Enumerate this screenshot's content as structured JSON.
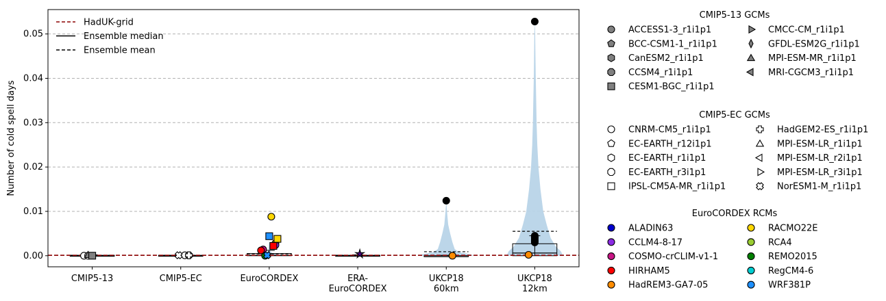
{
  "chart_data": {
    "type": "violin",
    "title": "",
    "ylabel": "Number of cold spell days",
    "xlabel": "",
    "ylim": [
      -0.0025,
      0.0555
    ],
    "yticks": [
      0.0,
      0.01,
      0.02,
      0.03,
      0.04,
      0.05
    ],
    "ytick_labels": [
      "0.00",
      "0.01",
      "0.02",
      "0.03",
      "0.04",
      "0.05"
    ],
    "grid": "horizontal dashed",
    "categories": [
      {
        "label_lines": [
          "CMIP5-13"
        ]
      },
      {
        "label_lines": [
          "CMIP5-EC"
        ]
      },
      {
        "label_lines": [
          "EuroCORDEX"
        ]
      },
      {
        "label_lines": [
          "ERA-",
          "EuroCORDEX"
        ]
      },
      {
        "label_lines": [
          "UKCP18",
          "60km"
        ]
      },
      {
        "label_lines": [
          "UKCP18",
          "12km"
        ]
      }
    ],
    "reference_line": {
      "name": "HadUK-grid",
      "value": 0.0001,
      "color": "#8b0000"
    },
    "box_stats": [
      {
        "q1": 0.0,
        "median": 0.0,
        "q3": 0.0001,
        "mean": 0.0001,
        "whisker_low": 0.0,
        "whisker_high": 0.0002
      },
      {
        "q1": 0.0,
        "median": 0.0,
        "q3": 0.0001,
        "mean": 0.0001,
        "whisker_low": 0.0,
        "whisker_high": 0.0002
      },
      {
        "q1": 0.0,
        "median": 0.0001,
        "q3": 0.0005,
        "mean": 0.0004,
        "whisker_low": 0.0,
        "whisker_high": 0.0012
      },
      {
        "q1": 0.0,
        "median": 0.0,
        "q3": 0.0001,
        "mean": 0.0001,
        "whisker_low": 0.0,
        "whisker_high": 0.0002
      },
      {
        "q1": 0.0,
        "median": 0.0,
        "q3": 0.0,
        "mean": 0.0009,
        "whisker_low": 0.0,
        "whisker_high": 0.0001
      },
      {
        "q1": 0.0,
        "median": 0.0006,
        "q3": 0.0027,
        "mean": 0.0055,
        "whisker_low": 0.0,
        "whisker_high": 0.0045
      }
    ],
    "violins": [
      {
        "category": 4,
        "profile": [
          [
            0.0,
            1.0
          ],
          [
            0.0004,
            0.8
          ],
          [
            0.0008,
            0.45
          ],
          [
            0.0015,
            0.3
          ],
          [
            0.003,
            0.22
          ],
          [
            0.005,
            0.14
          ],
          [
            0.007,
            0.07
          ],
          [
            0.009,
            0.04
          ],
          [
            0.0105,
            0.02
          ],
          [
            0.0125,
            0.0
          ]
        ]
      },
      {
        "category": 5,
        "profile": [
          [
            0.0,
            1.0
          ],
          [
            0.001,
            0.92
          ],
          [
            0.002,
            0.75
          ],
          [
            0.004,
            0.56
          ],
          [
            0.007,
            0.42
          ],
          [
            0.01,
            0.3
          ],
          [
            0.015,
            0.2
          ],
          [
            0.02,
            0.13
          ],
          [
            0.025,
            0.09
          ],
          [
            0.03,
            0.065
          ],
          [
            0.035,
            0.05
          ],
          [
            0.04,
            0.035
          ],
          [
            0.045,
            0.025
          ],
          [
            0.05,
            0.015
          ],
          [
            0.0528,
            0.0
          ]
        ]
      },
      {
        "category": 2,
        "profile": [
          [
            0.0,
            0.45
          ],
          [
            0.0005,
            0.12
          ],
          [
            0.001,
            0.04
          ],
          [
            0.002,
            0.02
          ],
          [
            0.0035,
            0.0
          ]
        ]
      }
    ],
    "outliers": [
      {
        "category": 4,
        "values": [
          0.0124
        ]
      },
      {
        "category": 5,
        "values": [
          0.0528,
          0.0045,
          0.0042,
          0.004,
          0.0036,
          0.0033,
          0.003
        ]
      }
    ],
    "points": [
      {
        "category": 0,
        "marker": "circle",
        "fill": "#ffffff",
        "values": [
          0.0,
          0.0
        ]
      },
      {
        "category": 0,
        "marker": "triangle",
        "fill": "#808080",
        "values": [
          0.0002
        ]
      },
      {
        "category": 0,
        "marker": "square",
        "fill": "#808080",
        "values": [
          0.0
        ]
      },
      {
        "category": 1,
        "marker": "circle",
        "fill": "#ffffff",
        "values": [
          0.0001,
          0.0001
        ]
      },
      {
        "category": 1,
        "marker": "cross",
        "fill": "#ffffff",
        "values": [
          0.0001
        ]
      },
      {
        "category": 1,
        "marker": "x",
        "fill": "#ffffff",
        "values": [
          0.0001
        ]
      },
      {
        "category": 2,
        "marker": "circle",
        "fill": "#ffd700",
        "values": [
          0.0088,
          0.0028
        ]
      },
      {
        "category": 2,
        "marker": "circle",
        "fill": "#8a2be2",
        "values": [
          0.0024
        ]
      },
      {
        "category": 2,
        "marker": "circle",
        "fill": "#c71585",
        "values": [
          0.0014
        ]
      },
      {
        "category": 2,
        "marker": "circle",
        "fill": "#ff0000",
        "values": [
          0.0012
        ]
      },
      {
        "category": 2,
        "marker": "circle",
        "fill": "#008000",
        "values": [
          0.0
        ]
      },
      {
        "category": 2,
        "marker": "square",
        "fill": "#1e90ff",
        "values": [
          0.0044
        ]
      },
      {
        "category": 2,
        "marker": "square",
        "fill": "#ff0000",
        "values": [
          0.0022
        ]
      },
      {
        "category": 2,
        "marker": "square",
        "fill": "#ffd700",
        "values": [
          0.0038
        ]
      },
      {
        "category": 2,
        "marker": "x",
        "fill": "#1e90ff",
        "values": [
          0.0001
        ]
      },
      {
        "category": 3,
        "marker": "star",
        "fill": "#4b0082",
        "values": [
          0.0004
        ]
      },
      {
        "category": 4,
        "marker": "circle",
        "fill": "#ff8c00",
        "values": [
          0.0
        ]
      },
      {
        "category": 5,
        "marker": "circle",
        "fill": "#ff8c00",
        "values": [
          0.0002
        ]
      }
    ],
    "legend_main": [
      {
        "label": "HadUK-grid",
        "style": "dashed",
        "color": "#8b0000"
      },
      {
        "label": "Ensemble median",
        "style": "solid",
        "color": "#000000"
      },
      {
        "label": "Ensemble mean",
        "style": "dashed",
        "color": "#000000"
      }
    ],
    "legend_groups": [
      {
        "title": "CMIP5-13 GCMs",
        "col1": [
          {
            "label": "ACCESS1-3_r1i1p1",
            "marker": "circle",
            "fill": "#808080"
          },
          {
            "label": "BCC-CSM1-1_r1i1p1",
            "marker": "pentagon",
            "fill": "#808080"
          },
          {
            "label": "CanESM2_r1i1p1",
            "marker": "hexagon",
            "fill": "#808080"
          },
          {
            "label": "CCSM4_r1i1p1",
            "marker": "octagon",
            "fill": "#808080"
          },
          {
            "label": "CESM1-BGC_r1i1p1",
            "marker": "square",
            "fill": "#808080"
          }
        ],
        "col2": [
          {
            "label": "CMCC-CM_r1i1p1",
            "marker": "triangle-right",
            "fill": "#808080"
          },
          {
            "label": "GFDL-ESM2G_r1i1p1",
            "marker": "diamond",
            "fill": "#808080"
          },
          {
            "label": "MPI-ESM-MR_r1i1p1",
            "marker": "triangle",
            "fill": "#808080"
          },
          {
            "label": "MRI-CGCM3_r1i1p1",
            "marker": "triangle-left",
            "fill": "#808080"
          }
        ]
      },
      {
        "title": "CMIP5-EC GCMs",
        "col1": [
          {
            "label": "CNRM-CM5_r1i1p1",
            "marker": "circle",
            "fill": "#ffffff"
          },
          {
            "label": "EC-EARTH_r12i1p1",
            "marker": "pentagon",
            "fill": "#ffffff"
          },
          {
            "label": "EC-EARTH_r1i1p1",
            "marker": "hexagon",
            "fill": "#ffffff"
          },
          {
            "label": "EC-EARTH_r3i1p1",
            "marker": "octagon",
            "fill": "#ffffff"
          },
          {
            "label": "IPSL-CM5A-MR_r1i1p1",
            "marker": "square",
            "fill": "#ffffff"
          }
        ],
        "col2": [
          {
            "label": "HadGEM2-ES_r1i1p1",
            "marker": "cross",
            "fill": "#ffffff"
          },
          {
            "label": "MPI-ESM-LR_r1i1p1",
            "marker": "triangle",
            "fill": "#ffffff"
          },
          {
            "label": "MPI-ESM-LR_r2i1p1",
            "marker": "triangle-left",
            "fill": "#ffffff"
          },
          {
            "label": "MPI-ESM-LR_r3i1p1",
            "marker": "triangle-right",
            "fill": "#ffffff"
          },
          {
            "label": "NorESM1-M_r1i1p1",
            "marker": "x",
            "fill": "#ffffff"
          }
        ]
      },
      {
        "title": "EuroCORDEX RCMs",
        "col1": [
          {
            "label": "ALADIN63",
            "marker": "circle",
            "fill": "#0000cd"
          },
          {
            "label": "CCLM4-8-17",
            "marker": "circle",
            "fill": "#8a2be2"
          },
          {
            "label": "COSMO-crCLIM-v1-1",
            "marker": "circle",
            "fill": "#c71585"
          },
          {
            "label": "HIRHAM5",
            "marker": "circle",
            "fill": "#ff0000"
          },
          {
            "label": "HadREM3-GA7-05",
            "marker": "circle",
            "fill": "#ff8c00"
          }
        ],
        "col2": [
          {
            "label": "RACMO22E",
            "marker": "circle",
            "fill": "#ffd700"
          },
          {
            "label": "RCA4",
            "marker": "circle",
            "fill": "#9acd32"
          },
          {
            "label": "REMO2015",
            "marker": "circle",
            "fill": "#008000"
          },
          {
            "label": "RegCM4-6",
            "marker": "circle",
            "fill": "#00ced1"
          },
          {
            "label": "WRF381P",
            "marker": "circle",
            "fill": "#1e90ff"
          }
        ]
      }
    ],
    "colors": {
      "violin_fill": "#b8d4e8",
      "grid": "#b0b0b0",
      "reference": "#8b0000"
    }
  }
}
